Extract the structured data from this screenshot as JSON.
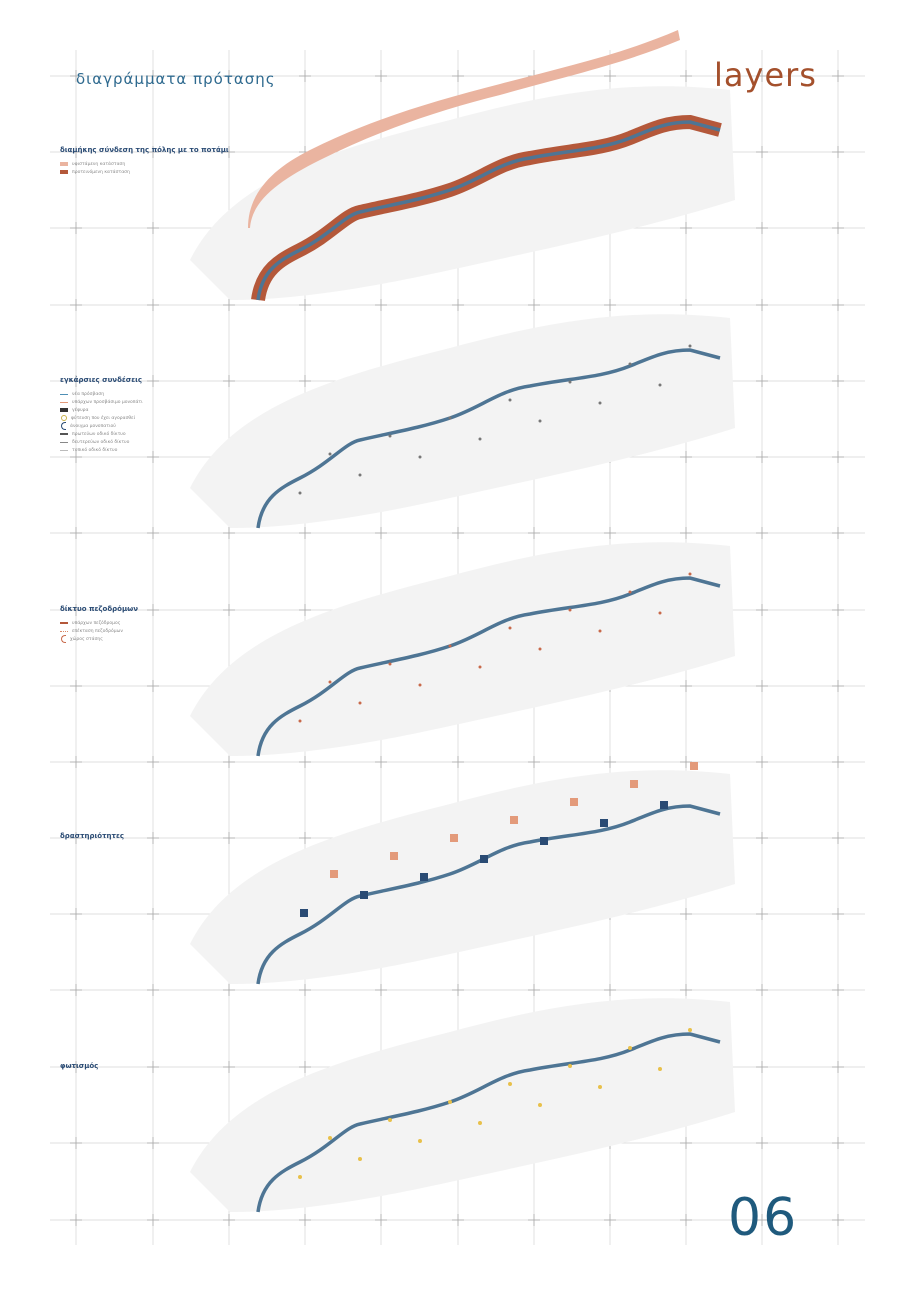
{
  "header": {
    "title": "διαγράμματα πρότασης",
    "subtitle": "layers"
  },
  "page_number": "06",
  "colors": {
    "river": "#4e7594",
    "orange": "#c8694a",
    "pink": "#eab4a0",
    "blue": "#2a4b74",
    "yellow": "#e8c04a"
  },
  "panels": [
    {
      "title": "διαμήκης σύνδεση της πόλης με το ποτάμι",
      "legend": [
        {
          "label": "υφιστάμενη κατάσταση",
          "color": "#eab4a0"
        },
        {
          "label": "προτεινόμενη κατάσταση",
          "color": "#b4583a"
        }
      ]
    },
    {
      "title": "εγκάρσιες συνδέσεις",
      "legend": [
        {
          "label": "νέα πρόσβαση",
          "color": "#4e8fb5"
        },
        {
          "label": "υπάρχων προσβάσιμο μονοπάτι",
          "color": "#e39a7a"
        },
        {
          "label": "γέφυρα",
          "color": "#333333"
        },
        {
          "label": "φύτευση που έχει αγορασθεί",
          "color": "#c9b24a"
        },
        {
          "label": "άνοιγμα μονοπατιού",
          "color": "#2a4b74"
        },
        {
          "label": "πρωτεύων οδικό δίκτυο",
          "color": "#555555"
        },
        {
          "label": "δευτερεύων οδικό δίκτυο",
          "color": "#888888"
        },
        {
          "label": "τοπικό οδικό δίκτυο",
          "color": "#bbbbbb"
        }
      ]
    },
    {
      "title": "δίκτυο πεζοδρόμων",
      "legend": [
        {
          "label": "υπάρχων πεζόδρομος",
          "color": "#b4583a"
        },
        {
          "label": "επέκταση πεζοδρόμων",
          "color": "#d98a6a"
        },
        {
          "label": "χώρος στάσης",
          "color": "#c8694a"
        }
      ]
    },
    {
      "title": "δραστηριότητες",
      "legend": []
    },
    {
      "title": "φωτισμός",
      "legend": []
    }
  ]
}
